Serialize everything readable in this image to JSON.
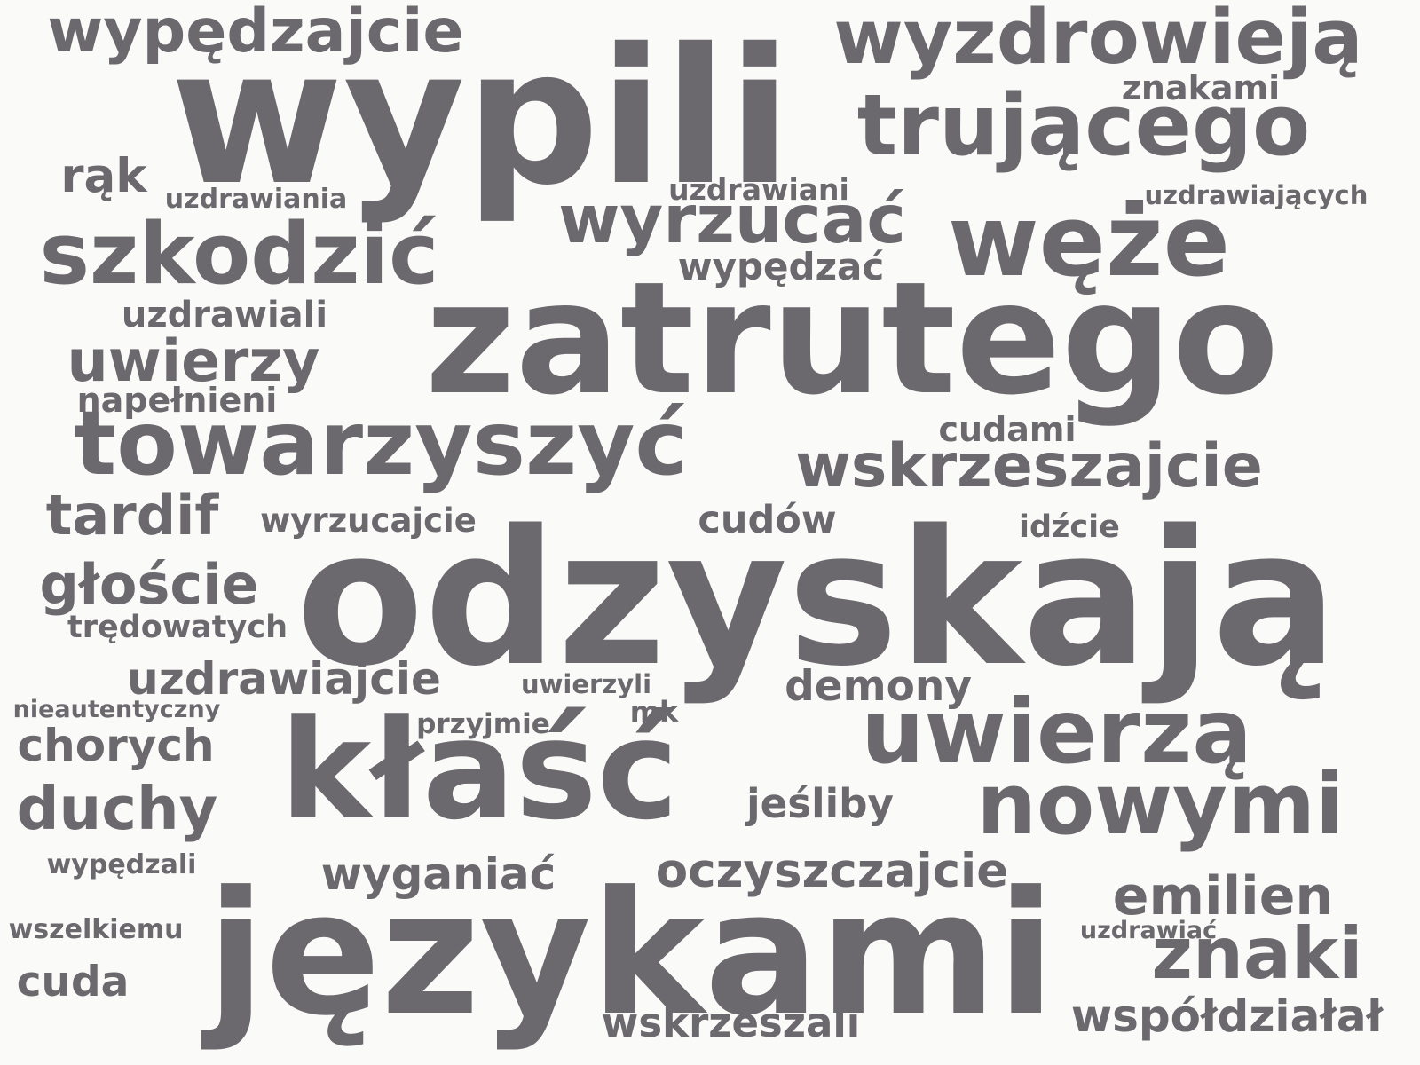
{
  "color": "#6b686e",
  "background": "#fafaf8",
  "words": [
    "wypili",
    "zatrutego",
    "odzyskają",
    "językami",
    "kłaść",
    "wypędzajcie",
    "wyzdrowieją",
    "trującego",
    "znakami",
    "rąk",
    "uzdrawiania",
    "uzdrawiani",
    "uzdrawiających",
    "wyrzucać",
    "węże",
    "szkodzić",
    "wypędzać",
    "uzdrawiali",
    "uwierzy",
    "napełnieni",
    "towarzyszyć",
    "cudami",
    "wskrzeszajcie",
    "tardif",
    "wyrzucajcie",
    "cudów",
    "idźcie",
    "głoście",
    "trędowatych",
    "uzdrawiajcie",
    "uwierzyli",
    "demony",
    "nieautentyczny",
    "mk",
    "przyjmie",
    "uwierzą",
    "chorych",
    "jeśliby",
    "nowymi",
    "duchy",
    "wypędzali",
    "wyganiać",
    "oczyszczajcie",
    "emilien",
    "wszelkiemu",
    "uzdrawiać",
    "znaki",
    "cuda",
    "wskrzeszali",
    "współdziałał"
  ]
}
